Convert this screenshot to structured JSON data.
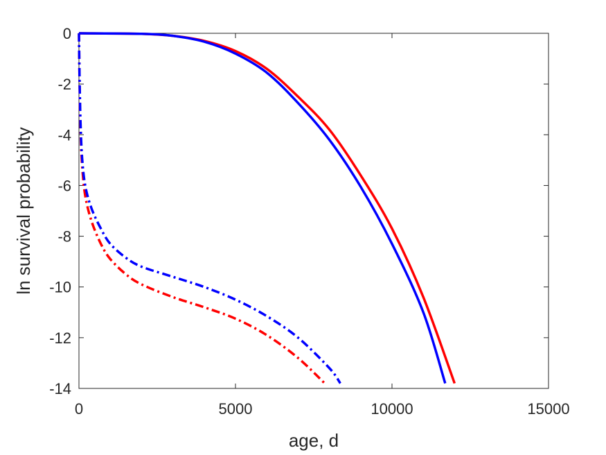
{
  "chart_data": {
    "type": "line",
    "title": "",
    "xlabel": "age, d",
    "ylabel": "ln survival probability",
    "xlim": [
      0,
      15000
    ],
    "ylim": [
      -14,
      0
    ],
    "xticks": [
      0,
      5000,
      10000,
      15000
    ],
    "xtick_labels": [
      "0",
      "5000",
      "10000",
      "15000"
    ],
    "yticks": [
      0,
      -2,
      -4,
      -6,
      -8,
      -10,
      -12,
      -14
    ],
    "ytick_labels": [
      "0",
      "-2",
      "-4",
      "-6",
      "-8",
      "-10",
      "-12",
      "-14"
    ],
    "grid": false,
    "legend": "none",
    "series": [
      {
        "color": "#ff0000",
        "style": "solid",
        "points": [
          [
            0,
            0
          ],
          [
            2000,
            -0.02
          ],
          [
            3000,
            -0.1
          ],
          [
            4000,
            -0.3
          ],
          [
            5000,
            -0.7
          ],
          [
            6000,
            -1.4
          ],
          [
            7000,
            -2.5
          ],
          [
            8000,
            -3.8
          ],
          [
            9000,
            -5.6
          ],
          [
            10000,
            -7.7
          ],
          [
            11000,
            -10.4
          ],
          [
            12000,
            -13.8
          ]
        ]
      },
      {
        "color": "#0000ff",
        "style": "solid",
        "points": [
          [
            0,
            0
          ],
          [
            2000,
            -0.02
          ],
          [
            3000,
            -0.1
          ],
          [
            4000,
            -0.33
          ],
          [
            5000,
            -0.8
          ],
          [
            6000,
            -1.55
          ],
          [
            7000,
            -2.75
          ],
          [
            8000,
            -4.2
          ],
          [
            9000,
            -6.05
          ],
          [
            10000,
            -8.3
          ],
          [
            11000,
            -11.0
          ],
          [
            11700,
            -13.8
          ]
        ]
      },
      {
        "color": "#ff0000",
        "style": "dash-dot",
        "points": [
          [
            0,
            0
          ],
          [
            20,
            -2.0
          ],
          [
            50,
            -3.8
          ],
          [
            100,
            -5.2
          ],
          [
            200,
            -6.4
          ],
          [
            400,
            -7.4
          ],
          [
            700,
            -8.3
          ],
          [
            1000,
            -8.9
          ],
          [
            1500,
            -9.5
          ],
          [
            2000,
            -9.9
          ],
          [
            3000,
            -10.4
          ],
          [
            4000,
            -10.8
          ],
          [
            5000,
            -11.25
          ],
          [
            6000,
            -11.9
          ],
          [
            7000,
            -12.8
          ],
          [
            7850,
            -13.8
          ]
        ]
      },
      {
        "color": "#0000ff",
        "style": "dash-dot",
        "points": [
          [
            0,
            0
          ],
          [
            20,
            -1.8
          ],
          [
            50,
            -3.5
          ],
          [
            100,
            -4.9
          ],
          [
            200,
            -6.0
          ],
          [
            400,
            -6.9
          ],
          [
            700,
            -7.7
          ],
          [
            1000,
            -8.3
          ],
          [
            1500,
            -8.85
          ],
          [
            2000,
            -9.2
          ],
          [
            3000,
            -9.6
          ],
          [
            4000,
            -10.0
          ],
          [
            5000,
            -10.5
          ],
          [
            6000,
            -11.15
          ],
          [
            7000,
            -12.0
          ],
          [
            8000,
            -13.2
          ],
          [
            8350,
            -13.8
          ]
        ]
      }
    ]
  }
}
